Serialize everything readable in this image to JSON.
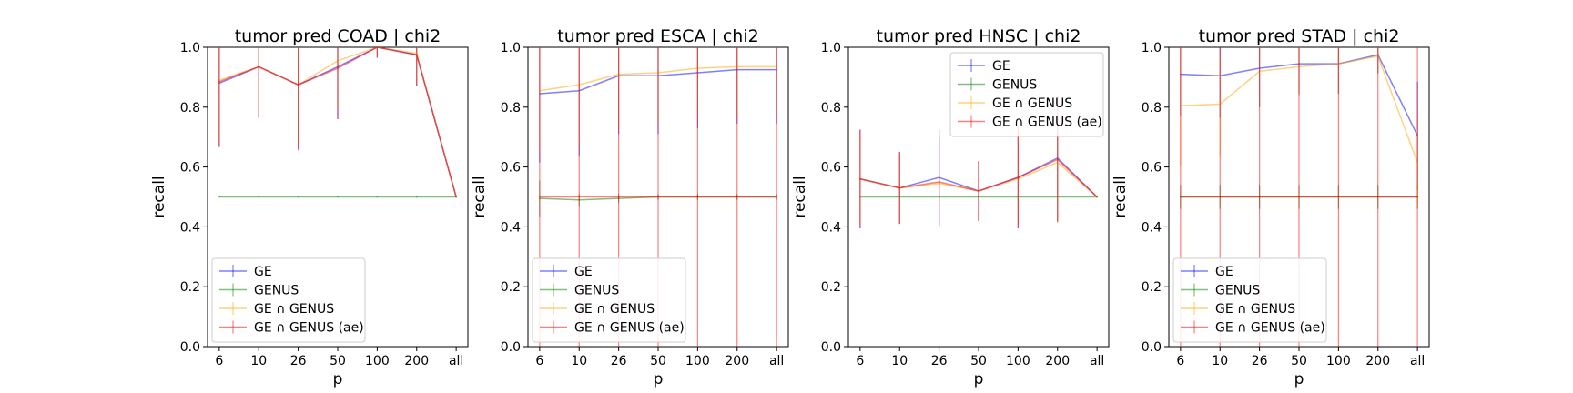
{
  "chart_data": [
    {
      "type": "line",
      "title": "tumor pred COAD | chi2",
      "xlabel": "p",
      "ylabel": "recall",
      "categories": [
        "6",
        "10",
        "26",
        "50",
        "100",
        "200",
        "all"
      ],
      "ylim": [
        0,
        1
      ],
      "yticks": [
        "0.0",
        "0.2",
        "0.4",
        "0.6",
        "0.8",
        "1.0"
      ],
      "grid": false,
      "legend_position": "lower-left",
      "series": [
        {
          "name": "GE",
          "color": "#0000ff",
          "values": [
            0.88,
            0.935,
            0.875,
            0.935,
            1.0,
            0.975,
            0.5
          ],
          "errors": [
            0.21,
            0.17,
            0.215,
            0.175,
            0.035,
            0.105,
            0.0
          ]
        },
        {
          "name": "GENUS",
          "color": "#008000",
          "values": [
            0.5,
            0.5,
            0.5,
            0.5,
            0.5,
            0.5,
            0.5
          ],
          "errors": [
            0.0,
            0.0,
            0.0,
            0.0,
            0.0,
            0.0,
            0.0
          ]
        },
        {
          "name": "GE ∩ GENUS",
          "color": "#ffa500",
          "values": [
            0.89,
            0.935,
            0.875,
            0.955,
            1.0,
            0.98,
            0.5
          ],
          "errors": [
            0.2,
            0.17,
            0.21,
            0.16,
            0.035,
            0.1,
            0.0
          ]
        },
        {
          "name": "GE ∩ GENUS (ae)",
          "color": "#ff0000",
          "values": [
            0.885,
            0.935,
            0.875,
            0.93,
            1.0,
            0.975,
            0.5
          ],
          "errors": [
            0.22,
            0.17,
            0.22,
            0.17,
            0.035,
            0.105,
            0.0
          ]
        }
      ]
    },
    {
      "type": "line",
      "title": "tumor pred ESCA | chi2",
      "xlabel": "p",
      "ylabel": "recall",
      "categories": [
        "6",
        "10",
        "26",
        "50",
        "100",
        "200",
        "all"
      ],
      "ylim": [
        0,
        1
      ],
      "yticks": [
        "0.0",
        "0.2",
        "0.4",
        "0.6",
        "0.8",
        "1.0"
      ],
      "grid": false,
      "legend_position": "lower-left",
      "series": [
        {
          "name": "GE",
          "color": "#0000ff",
          "values": [
            0.845,
            0.855,
            0.905,
            0.905,
            0.915,
            0.925,
            0.925
          ],
          "errors": [
            0.23,
            0.22,
            0.195,
            0.195,
            0.185,
            0.18,
            0.18
          ]
        },
        {
          "name": "GENUS",
          "color": "#008000",
          "values": [
            0.495,
            0.49,
            0.495,
            0.5,
            0.5,
            0.5,
            0.5
          ],
          "errors": [
            0.06,
            0.02,
            0.015,
            0.01,
            0.01,
            0.01,
            0.01
          ]
        },
        {
          "name": "GE ∩ GENUS",
          "color": "#ffa500",
          "values": [
            0.855,
            0.875,
            0.91,
            0.915,
            0.93,
            0.935,
            0.935
          ],
          "errors": [
            0.2,
            0.2,
            0.18,
            0.18,
            0.17,
            0.17,
            0.17
          ]
        },
        {
          "name": "GE ∩ GENUS (ae)",
          "color": "#ff0000",
          "values": [
            0.5,
            0.5,
            0.5,
            0.5,
            0.5,
            0.5,
            0.5
          ],
          "errors": [
            0.5,
            0.5,
            0.5,
            0.5,
            0.5,
            0.5,
            0.5
          ]
        }
      ]
    },
    {
      "type": "line",
      "title": "tumor pred HNSC | chi2",
      "xlabel": "p",
      "ylabel": "recall",
      "categories": [
        "6",
        "10",
        "26",
        "50",
        "100",
        "200",
        "all"
      ],
      "ylim": [
        0,
        1
      ],
      "yticks": [
        "0.0",
        "0.2",
        "0.4",
        "0.6",
        "0.8",
        "1.0"
      ],
      "grid": false,
      "legend_position": "upper-right",
      "series": [
        {
          "name": "GE",
          "color": "#0000ff",
          "values": [
            0.56,
            0.53,
            0.565,
            0.52,
            0.565,
            0.63,
            0.5
          ],
          "errors": [
            0.165,
            0.12,
            0.16,
            0.1,
            0.17,
            0.21,
            0.0
          ]
        },
        {
          "name": "GENUS",
          "color": "#008000",
          "values": [
            0.5,
            0.5,
            0.5,
            0.5,
            0.5,
            0.5,
            0.5
          ],
          "errors": [
            0.0,
            0.0,
            0.0,
            0.0,
            0.0,
            0.0,
            0.0
          ]
        },
        {
          "name": "GE ∩ GENUS",
          "color": "#ffa500",
          "values": [
            0.56,
            0.53,
            0.545,
            0.52,
            0.56,
            0.615,
            0.5
          ],
          "errors": [
            0.16,
            0.12,
            0.14,
            0.1,
            0.16,
            0.2,
            0.0
          ]
        },
        {
          "name": "GE ∩ GENUS (ae)",
          "color": "#ff0000",
          "values": [
            0.56,
            0.53,
            0.55,
            0.52,
            0.565,
            0.625,
            0.5
          ],
          "errors": [
            0.165,
            0.12,
            0.15,
            0.1,
            0.17,
            0.21,
            0.0
          ]
        }
      ]
    },
    {
      "type": "line",
      "title": "tumor pred STAD | chi2",
      "xlabel": "p",
      "ylabel": "recall",
      "categories": [
        "6",
        "10",
        "26",
        "50",
        "100",
        "200",
        "all"
      ],
      "ylim": [
        0,
        1
      ],
      "yticks": [
        "0.0",
        "0.2",
        "0.4",
        "0.6",
        "0.8",
        "1.0"
      ],
      "grid": false,
      "legend_position": "lower-left",
      "series": [
        {
          "name": "GE",
          "color": "#0000ff",
          "values": [
            0.91,
            0.905,
            0.93,
            0.945,
            0.945,
            0.975,
            0.705
          ],
          "errors": [
            0.14,
            0.14,
            0.13,
            0.1,
            0.1,
            0.06,
            0.18
          ]
        },
        {
          "name": "GENUS",
          "color": "#008000",
          "values": [
            0.5,
            0.5,
            0.5,
            0.5,
            0.5,
            0.5,
            0.5
          ],
          "errors": [
            0.04,
            0.04,
            0.04,
            0.04,
            0.04,
            0.04,
            0.04
          ]
        },
        {
          "name": "GE ∩ GENUS",
          "color": "#ffa500",
          "values": [
            0.805,
            0.81,
            0.92,
            0.935,
            0.945,
            0.97,
            0.615
          ],
          "errors": [
            0.2,
            0.17,
            0.12,
            0.1,
            0.1,
            0.06,
            0.15
          ]
        },
        {
          "name": "GE ∩ GENUS (ae)",
          "color": "#ff0000",
          "values": [
            0.5,
            0.5,
            0.5,
            0.5,
            0.5,
            0.5,
            0.5
          ],
          "errors": [
            0.5,
            0.5,
            0.5,
            0.5,
            0.5,
            0.5,
            0.5
          ]
        }
      ]
    }
  ]
}
